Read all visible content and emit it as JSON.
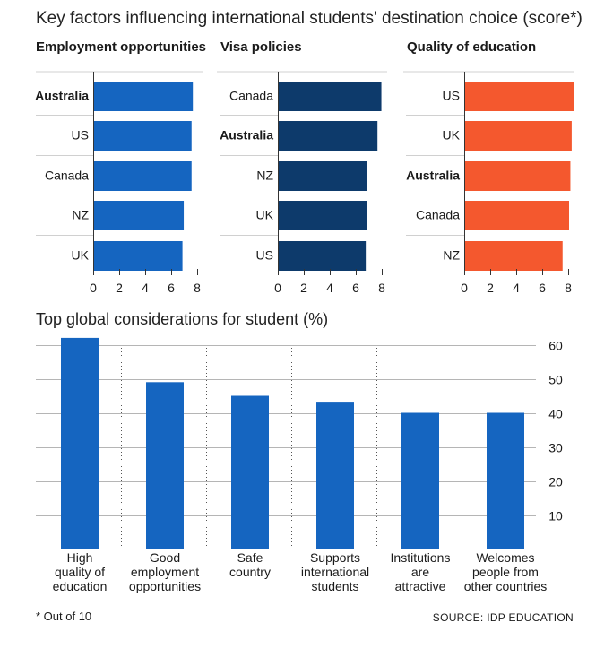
{
  "title": "Key factors influencing international students' destination choice (score*)",
  "footnote": "* Out of 10",
  "source": "SOURCE: IDP EDUCATION",
  "chart_data": [
    {
      "type": "bar",
      "orientation": "horizontal",
      "title": "Employment opportunities",
      "categories": [
        "Australia",
        "US",
        "Canada",
        "NZ",
        "UK"
      ],
      "values": [
        7.6,
        7.5,
        7.5,
        6.9,
        6.8
      ],
      "highlight": "Australia",
      "xlim": [
        0,
        8
      ],
      "xticks": [
        0,
        2,
        4,
        6,
        8
      ],
      "color": "#1565c0"
    },
    {
      "type": "bar",
      "orientation": "horizontal",
      "title": "Visa policies",
      "categories": [
        "Canada",
        "Australia",
        "NZ",
        "UK",
        "US"
      ],
      "values": [
        7.9,
        7.6,
        6.8,
        6.8,
        6.7
      ],
      "highlight": "Australia",
      "xlim": [
        0,
        8
      ],
      "xticks": [
        0,
        2,
        4,
        6,
        8
      ],
      "color": "#0d3a6b"
    },
    {
      "type": "bar",
      "orientation": "horizontal",
      "title": "Quality of education",
      "categories": [
        "US",
        "UK",
        "Australia",
        "Canada",
        "NZ"
      ],
      "values": [
        8.4,
        8.2,
        8.1,
        8.0,
        7.5
      ],
      "highlight": "Australia",
      "xlim": [
        0,
        8
      ],
      "xticks": [
        0,
        2,
        4,
        6,
        8
      ],
      "color": "#f4582e"
    },
    {
      "type": "bar",
      "title": "Top global considerations for student (%)",
      "categories": [
        [
          "High",
          "quality of",
          "education"
        ],
        [
          "Good",
          "employment",
          "opportunities"
        ],
        [
          "Safe",
          "country"
        ],
        [
          "Supports",
          "international",
          "students"
        ],
        [
          "Institutions",
          "are",
          "attractive"
        ],
        [
          "Welcomes",
          "people from",
          "other countries"
        ]
      ],
      "values": [
        62,
        49,
        45,
        43,
        40,
        40
      ],
      "ylim": [
        0,
        62
      ],
      "yticks": [
        10,
        20,
        30,
        40,
        50,
        60
      ],
      "grid": true,
      "color": "#1565c0"
    }
  ]
}
